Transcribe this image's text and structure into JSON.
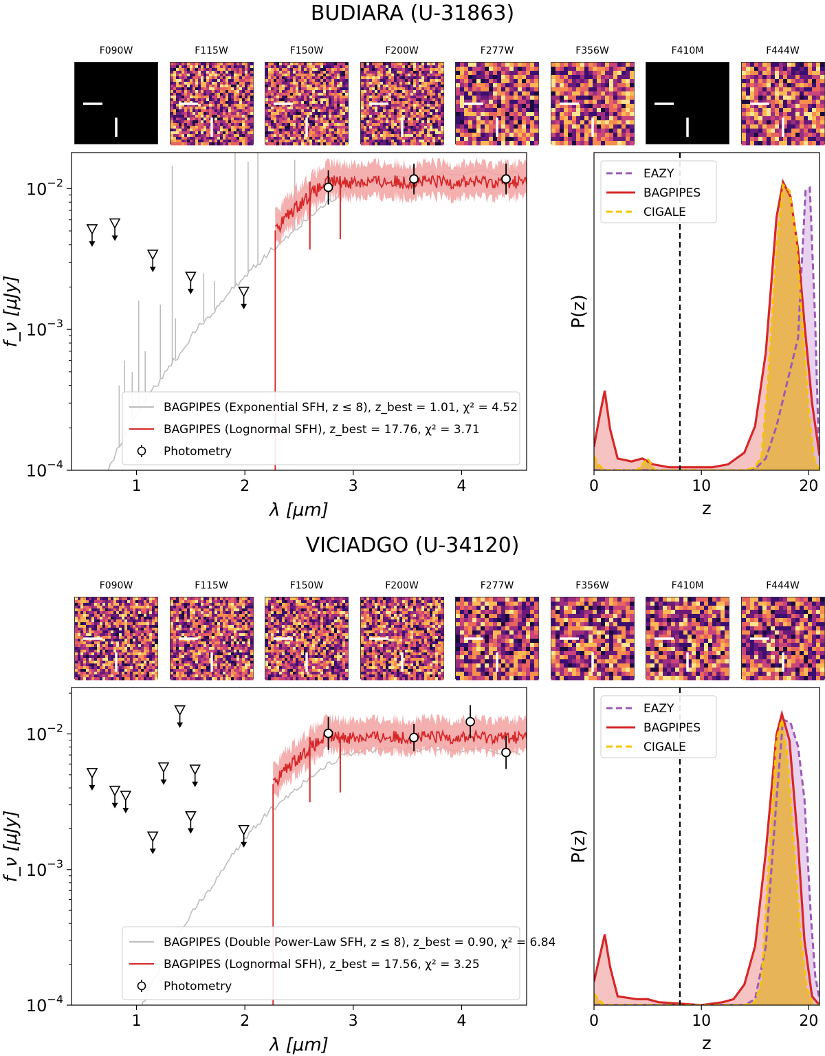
{
  "colors": {
    "exponential": "#bdbdbd",
    "lognormal": "#d62728",
    "lognormal_band": "#f2a1a1",
    "eazy": "#9b59b6",
    "bagpipes": "#d62728",
    "cigale": "#f2c500",
    "cigale_fill": "#e8b341"
  },
  "panels": [
    {
      "title": "BUDIARA (U-31863)",
      "filters": [
        "F090W",
        "F115W",
        "F150W",
        "F200W",
        "F277W",
        "F356W",
        "F410M",
        "F444W"
      ],
      "blank_filters": [
        "F090W",
        "F410M"
      ],
      "sed": {
        "xlabel": "λ [μm]",
        "ylabel": "f_ν [μJy]",
        "xlim": [
          0.4,
          4.6
        ],
        "ylim": [
          0.0001,
          0.018
        ],
        "xticks": [
          "1",
          "2",
          "3",
          "4"
        ],
        "yticks": [
          "10^-2",
          "10^-3",
          "10^-4"
        ],
        "legend": [
          {
            "label": "BAGPIPES (Exponential SFH, z ≤ 8), z_best = 1.01, χ² = 4.52",
            "style": "exponential"
          },
          {
            "label": "BAGPIPES (Lognormal SFH), z_best = 17.76, χ² = 3.71",
            "style": "lognormal"
          },
          {
            "label": "Photometry",
            "style": "marker"
          }
        ],
        "photometry": [
          {
            "x": 2.77,
            "y": 0.0102,
            "err": 0.25
          },
          {
            "x": 3.56,
            "y": 0.0117,
            "err": 0.22
          },
          {
            "x": 4.41,
            "y": 0.0117,
            "err": 0.22
          }
        ],
        "upper_limits": [
          {
            "x": 0.59,
            "y": 0.005
          },
          {
            "x": 0.8,
            "y": 0.0055
          },
          {
            "x": 1.15,
            "y": 0.0033
          },
          {
            "x": 1.5,
            "y": 0.0023
          },
          {
            "x": 1.99,
            "y": 0.0018
          }
        ],
        "exponential_curve": [
          [
            0.4,
            5e-05
          ],
          [
            0.7,
            9e-05
          ],
          [
            1.0,
            0.00025
          ],
          [
            1.2,
            0.00042
          ],
          [
            1.4,
            0.00068
          ],
          [
            1.6,
            0.0011
          ],
          [
            1.8,
            0.0016
          ],
          [
            2.0,
            0.0024
          ],
          [
            2.2,
            0.0034
          ],
          [
            2.4,
            0.0046
          ],
          [
            2.6,
            0.0064
          ],
          [
            2.8,
            0.0085
          ],
          [
            3.0,
            0.0105
          ],
          [
            3.3,
            0.0118
          ],
          [
            3.6,
            0.0124
          ],
          [
            4.0,
            0.0128
          ],
          [
            4.6,
            0.013
          ]
        ],
        "emission_lines": [
          [
            0.84,
            0.0004
          ],
          [
            0.89,
            0.0006
          ],
          [
            0.96,
            0.0005
          ],
          [
            1.02,
            0.0016
          ],
          [
            1.08,
            0.0007
          ],
          [
            1.22,
            0.0015
          ],
          [
            1.33,
            0.0145
          ],
          [
            1.36,
            0.0012
          ],
          [
            1.62,
            0.0025
          ],
          [
            1.72,
            0.0022
          ],
          [
            1.91,
            0.018
          ],
          [
            2.03,
            0.0155
          ],
          [
            2.12,
            0.018
          ],
          [
            2.23,
            0.0035
          ],
          [
            2.46,
            0.016
          ]
        ],
        "lognormal_break": 2.28,
        "lognormal_level": 0.0112,
        "lognormal_xmax": 4.6
      },
      "pz": {
        "xlabel": "z",
        "ylabel": "P(z)",
        "xlim": [
          0,
          21
        ],
        "xticks": [
          "0",
          "10",
          "20"
        ],
        "dashed_line_z": 8,
        "legend": [
          "EAZY",
          "BAGPIPES",
          "CIGALE"
        ],
        "eazy": [
          [
            0,
            0
          ],
          [
            14,
            0
          ],
          [
            15,
            0.005
          ],
          [
            16,
            0.04
          ],
          [
            17,
            0.15
          ],
          [
            18,
            0.3
          ],
          [
            19,
            0.45
          ],
          [
            19.7,
            0.95
          ],
          [
            20.1,
            0.96
          ],
          [
            20.6,
            0.5
          ],
          [
            20.9,
            0.12
          ],
          [
            21,
            0.05
          ]
        ],
        "bagpipes": [
          [
            0,
            0.08
          ],
          [
            0.5,
            0.18
          ],
          [
            1,
            0.27
          ],
          [
            1.5,
            0.14
          ],
          [
            2.2,
            0.04
          ],
          [
            3.5,
            0.03
          ],
          [
            4.5,
            0.04
          ],
          [
            5.5,
            0.02
          ],
          [
            7,
            0.01
          ],
          [
            11,
            0.01
          ],
          [
            12.5,
            0.02
          ],
          [
            14,
            0.06
          ],
          [
            15,
            0.15
          ],
          [
            16,
            0.4
          ],
          [
            17,
            0.86
          ],
          [
            17.6,
            0.98
          ],
          [
            18.3,
            0.93
          ],
          [
            19,
            0.75
          ],
          [
            19.6,
            0.5
          ],
          [
            20.3,
            0.23
          ],
          [
            21,
            0.05
          ]
        ],
        "cigale": [
          [
            0,
            0.05
          ],
          [
            0.4,
            0.02
          ],
          [
            1,
            0.0
          ],
          [
            4,
            0.0
          ],
          [
            5,
            0.04
          ],
          [
            5.7,
            0.0
          ],
          [
            14,
            0.0
          ],
          [
            15,
            0.01
          ],
          [
            15.6,
            0.05
          ],
          [
            16.2,
            0.3
          ],
          [
            17,
            0.75
          ],
          [
            17.6,
            0.97
          ],
          [
            18.2,
            0.95
          ],
          [
            18.8,
            0.8
          ],
          [
            19.4,
            0.5
          ],
          [
            20,
            0.2
          ],
          [
            20.5,
            0.04
          ],
          [
            21,
            0.0
          ]
        ]
      }
    },
    {
      "title": "VICIADGO (U-34120)",
      "filters": [
        "F090W",
        "F115W",
        "F150W",
        "F200W",
        "F277W",
        "F356W",
        "F410M",
        "F444W"
      ],
      "blank_filters": [],
      "sed": {
        "xlabel": "λ [μm]",
        "ylabel": "f_ν [μJy]",
        "xlim": [
          0.4,
          4.6
        ],
        "ylim": [
          0.0001,
          0.022
        ],
        "xticks": [
          "1",
          "2",
          "3",
          "4"
        ],
        "yticks": [
          "10^-2",
          "10^-3",
          "10^-4"
        ],
        "legend": [
          {
            "label": "BAGPIPES (Double Power-Law SFH, z ≤ 8), z_best = 0.90, χ² = 6.84",
            "style": "exponential"
          },
          {
            "label": "BAGPIPES (Lognormal SFH), z_best = 17.56, χ² = 3.25",
            "style": "lognormal"
          },
          {
            "label": "Photometry",
            "style": "marker"
          }
        ],
        "photometry": [
          {
            "x": 2.77,
            "y": 0.0101,
            "err": 0.25
          },
          {
            "x": 3.56,
            "y": 0.0094,
            "err": 0.2
          },
          {
            "x": 4.08,
            "y": 0.0123,
            "err": 0.25
          },
          {
            "x": 4.41,
            "y": 0.0073,
            "err": 0.25
          }
        ],
        "upper_limits": [
          {
            "x": 0.59,
            "y": 0.005
          },
          {
            "x": 0.8,
            "y": 0.0037
          },
          {
            "x": 0.9,
            "y": 0.0034
          },
          {
            "x": 1.15,
            "y": 0.0017
          },
          {
            "x": 1.25,
            "y": 0.0055
          },
          {
            "x": 1.4,
            "y": 0.0145
          },
          {
            "x": 1.5,
            "y": 0.0024
          },
          {
            "x": 1.54,
            "y": 0.0053
          },
          {
            "x": 1.99,
            "y": 0.0019
          }
        ],
        "exponential_curve": [
          [
            0.4,
            3e-05
          ],
          [
            0.9,
            5e-05
          ],
          [
            1.0,
            8e-05
          ],
          [
            1.2,
            0.00018
          ],
          [
            1.4,
            0.00035
          ],
          [
            1.6,
            0.0006
          ],
          [
            1.8,
            0.001
          ],
          [
            2.0,
            0.0017
          ],
          [
            2.2,
            0.0026
          ],
          [
            2.4,
            0.0035
          ],
          [
            2.6,
            0.0048
          ],
          [
            2.8,
            0.0063
          ],
          [
            3.0,
            0.0074
          ],
          [
            3.3,
            0.0078
          ],
          [
            3.6,
            0.0078
          ],
          [
            4.0,
            0.0076
          ],
          [
            4.6,
            0.0072
          ]
        ],
        "emission_lines": [],
        "lognormal_break": 2.26,
        "lognormal_level": 0.0095,
        "lognormal_xmax": 4.6
      },
      "pz": {
        "xlabel": "z",
        "ylabel": "P(z)",
        "xlim": [
          0,
          21
        ],
        "xticks": [
          "0",
          "10",
          "20"
        ],
        "dashed_line_z": 8,
        "legend": [
          "EAZY",
          "BAGPIPES",
          "CIGALE"
        ],
        "eazy": [
          [
            0,
            0
          ],
          [
            14,
            0
          ],
          [
            15,
            0.02
          ],
          [
            16,
            0.2
          ],
          [
            17,
            0.7
          ],
          [
            17.6,
            0.97
          ],
          [
            18.3,
            0.96
          ],
          [
            19,
            0.88
          ],
          [
            19.6,
            0.7
          ],
          [
            20.2,
            0.3
          ],
          [
            20.6,
            0.1
          ],
          [
            21,
            0.02
          ]
        ],
        "bagpipes": [
          [
            0,
            0.08
          ],
          [
            0.5,
            0.16
          ],
          [
            1,
            0.24
          ],
          [
            1.5,
            0.13
          ],
          [
            2.2,
            0.03
          ],
          [
            4,
            0.02
          ],
          [
            5,
            0.02
          ],
          [
            6,
            0.01
          ],
          [
            10,
            0.0
          ],
          [
            12,
            0.01
          ],
          [
            13,
            0.02
          ],
          [
            14,
            0.07
          ],
          [
            15,
            0.2
          ],
          [
            16,
            0.52
          ],
          [
            17,
            0.92
          ],
          [
            17.5,
            0.99
          ],
          [
            18.2,
            0.9
          ],
          [
            19,
            0.55
          ],
          [
            19.6,
            0.22
          ],
          [
            20.3,
            0.03
          ],
          [
            21,
            0.0
          ]
        ],
        "cigale": [
          [
            0,
            0.04
          ],
          [
            0.4,
            0.02
          ],
          [
            1,
            0.0
          ],
          [
            14,
            0.0
          ],
          [
            15,
            0.01
          ],
          [
            15.6,
            0.08
          ],
          [
            16.3,
            0.5
          ],
          [
            17,
            0.9
          ],
          [
            17.5,
            0.97
          ],
          [
            18,
            0.85
          ],
          [
            18.6,
            0.55
          ],
          [
            19.2,
            0.25
          ],
          [
            19.8,
            0.06
          ],
          [
            20.4,
            0.0
          ],
          [
            21,
            0.0
          ]
        ]
      }
    }
  ]
}
